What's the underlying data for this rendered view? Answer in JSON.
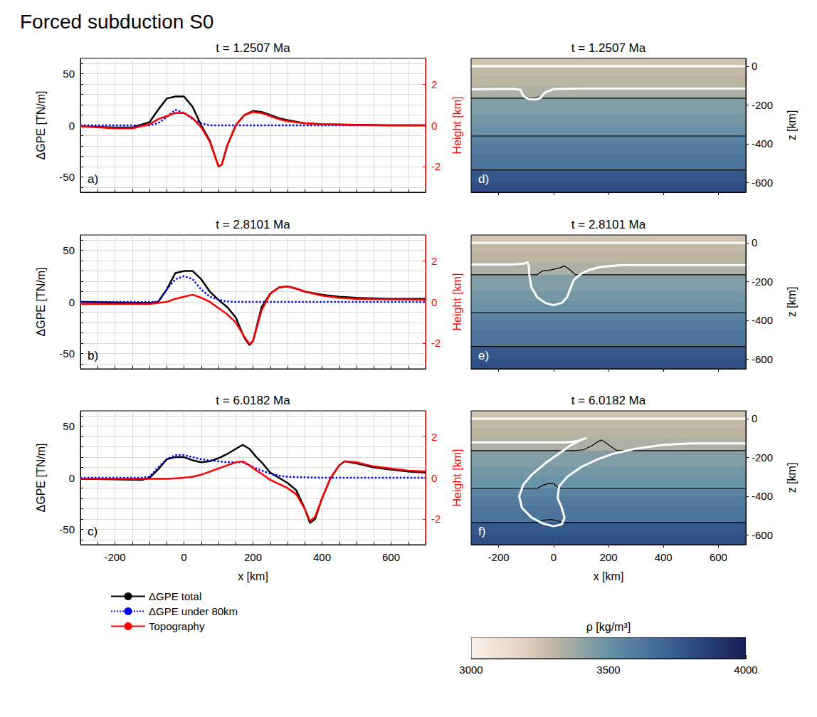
{
  "title": "Forced subduction S0",
  "chart_data": [
    {
      "type": "line",
      "title": "t = 1.2507 Ma",
      "letter": "a)",
      "ylabel": "ΔGPE [TN/m]",
      "y2label": "Height [km]",
      "xlim": [
        -300,
        700
      ],
      "xticks": [
        -200,
        0,
        200,
        400,
        600
      ],
      "ylim": [
        -65,
        65
      ],
      "yticks": [
        -50,
        0,
        50
      ],
      "y2lim": [
        -3.25,
        3.25
      ],
      "y2ticks": [
        -2,
        0,
        2
      ],
      "grid": true,
      "tick_labels": "y",
      "x": [
        -300,
        -200,
        -150,
        -100,
        -75,
        -50,
        -25,
        0,
        25,
        50,
        75,
        100,
        110,
        125,
        150,
        175,
        200,
        225,
        250,
        275,
        300,
        350,
        400,
        500,
        600,
        700
      ],
      "series": [
        {
          "name": "ΔGPE total",
          "color": "#000000",
          "line_style": "solid",
          "values": [
            -1,
            -2,
            -2,
            3,
            15,
            26,
            28,
            28,
            18,
            0,
            -15,
            -40,
            -38,
            -20,
            0,
            10,
            14,
            13,
            10,
            7,
            5,
            2,
            1,
            0.5,
            0,
            0
          ]
        },
        {
          "name": "ΔGPE under 80km",
          "color": "#0000ff",
          "line_style": "dotted",
          "values": [
            0,
            0,
            0,
            0,
            2,
            8,
            15,
            12,
            6,
            2,
            0,
            0,
            0,
            0,
            0,
            0,
            0,
            0,
            0,
            0,
            0,
            0,
            0,
            0,
            0,
            0
          ]
        },
        {
          "name": "Topography",
          "color": "#ff0000",
          "line_style": "solid",
          "axis": "y2",
          "values": [
            -0.05,
            -0.15,
            -0.15,
            0.05,
            0.3,
            0.45,
            0.6,
            0.6,
            0.35,
            -0.1,
            -0.8,
            -2.0,
            -1.9,
            -1.0,
            0,
            0.5,
            0.65,
            0.6,
            0.45,
            0.3,
            0.2,
            0.1,
            0.05,
            0.02,
            0,
            0
          ]
        }
      ]
    },
    {
      "type": "line",
      "title": "t = 2.8101 Ma",
      "letter": "b)",
      "ylabel": "ΔGPE [TN/m]",
      "y2label": "Height [km]",
      "xlim": [
        -300,
        700
      ],
      "xticks": [
        -200,
        0,
        200,
        400,
        600
      ],
      "ylim": [
        -65,
        65
      ],
      "yticks": [
        -50,
        0,
        50
      ],
      "y2lim": [
        -3.25,
        3.25
      ],
      "y2ticks": [
        -2,
        0,
        2
      ],
      "grid": true,
      "tick_labels": "y",
      "x": [
        -300,
        -200,
        -100,
        -75,
        -50,
        -25,
        0,
        25,
        50,
        75,
        100,
        125,
        150,
        175,
        190,
        200,
        225,
        250,
        275,
        300,
        325,
        350,
        400,
        450,
        500,
        600,
        700
      ],
      "series": [
        {
          "name": "ΔGPE total",
          "color": "#000000",
          "line_style": "solid",
          "values": [
            0,
            -0.5,
            -1,
            0,
            12,
            28,
            30,
            30,
            22,
            10,
            2,
            -5,
            -15,
            -35,
            -42,
            -38,
            -5,
            8,
            14,
            15,
            13,
            10,
            7,
            5,
            4,
            3,
            3
          ]
        },
        {
          "name": "ΔGPE under 80km",
          "color": "#0000ff",
          "line_style": "dotted",
          "values": [
            0,
            0,
            0,
            0,
            12,
            22,
            25,
            22,
            12,
            5,
            2,
            0.5,
            0,
            0,
            0,
            0,
            0,
            0,
            0,
            0,
            0,
            0,
            0,
            0,
            0,
            0,
            0
          ]
        },
        {
          "name": "Topography",
          "color": "#ff0000",
          "line_style": "solid",
          "axis": "y2",
          "values": [
            -0.1,
            -0.1,
            -0.1,
            -0.05,
            0,
            0.15,
            0.25,
            0.35,
            0.2,
            0,
            -0.3,
            -0.6,
            -1.0,
            -1.7,
            -2.05,
            -1.9,
            -0.4,
            0.4,
            0.7,
            0.75,
            0.65,
            0.5,
            0.3,
            0.2,
            0.15,
            0.12,
            0.1
          ]
        }
      ]
    },
    {
      "type": "line",
      "title": "t = 6.0182 Ma",
      "letter": "c)",
      "xlabel": "x [km]",
      "ylabel": "ΔGPE [TN/m]",
      "y2label": "Height [km]",
      "xlim": [
        -300,
        700
      ],
      "xticks": [
        -200,
        0,
        200,
        400,
        600
      ],
      "ylim": [
        -65,
        65
      ],
      "yticks": [
        -50,
        0,
        50
      ],
      "y2lim": [
        -3.25,
        3.25
      ],
      "y2ticks": [
        -2,
        0,
        2
      ],
      "grid": true,
      "legend": "bottom",
      "x": [
        -300,
        -200,
        -120,
        -100,
        -75,
        -50,
        -25,
        0,
        25,
        50,
        75,
        100,
        125,
        150,
        170,
        190,
        210,
        225,
        250,
        275,
        300,
        325,
        350,
        365,
        380,
        400,
        425,
        450,
        465,
        500,
        550,
        600,
        650,
        700
      ],
      "series": [
        {
          "name": "ΔGPE total",
          "color": "#000000",
          "line_style": "solid",
          "values": [
            -1,
            -1.5,
            -2,
            0,
            8,
            18,
            20,
            20,
            17,
            15,
            16,
            19,
            23,
            28,
            32,
            28,
            20,
            15,
            5,
            0,
            -5,
            -12,
            -30,
            -44,
            -40,
            -20,
            0,
            12,
            16,
            14,
            10,
            8,
            6,
            5
          ]
        },
        {
          "name": "ΔGPE under 80km",
          "color": "#0000ff",
          "line_style": "dotted",
          "values": [
            0,
            0,
            0,
            1,
            10,
            18,
            22,
            22,
            20,
            18,
            17,
            16,
            15,
            15,
            15,
            12,
            9,
            7,
            4,
            2,
            1,
            0.7,
            0.5,
            0.3,
            0.2,
            0,
            0,
            0,
            0,
            0,
            0,
            0,
            0,
            0
          ]
        },
        {
          "name": "Topography",
          "color": "#ff0000",
          "line_style": "solid",
          "axis": "y2",
          "values": [
            -0.05,
            -0.05,
            -0.05,
            -0.05,
            -0.05,
            -0.05,
            -0.03,
            0,
            0.05,
            0.15,
            0.3,
            0.45,
            0.6,
            0.75,
            0.8,
            0.6,
            0.35,
            0.2,
            -0.1,
            -0.3,
            -0.5,
            -0.8,
            -1.5,
            -2.1,
            -1.9,
            -1.0,
            0,
            0.6,
            0.8,
            0.75,
            0.55,
            0.45,
            0.35,
            0.3
          ]
        }
      ]
    },
    {
      "type": "density",
      "title": "t = 1.2507 Ma",
      "letter": "d)",
      "ylabel": "z [km]",
      "xlim": [
        -300,
        700
      ],
      "xticks": [
        -200,
        0,
        200,
        400,
        600
      ],
      "ylim": [
        -650,
        40
      ],
      "yticks": [
        0,
        -200,
        -400,
        -600
      ],
      "grid": false,
      "tick_labels": "y",
      "z": [
        40,
        0,
        -50,
        -100,
        -165,
        -250,
        -300,
        -360,
        -400,
        -450,
        -535,
        -600,
        -650
      ],
      "rho": [
        3250,
        3290,
        3310,
        3340,
        3440,
        3470,
        3500,
        3570,
        3600,
        3630,
        3760,
        3800
      ],
      "contours": [
        {
          "color": "#ffffff",
          "x": [
            -300,
            700
          ],
          "z": [
            0,
            0
          ]
        },
        {
          "color": "#ffffff",
          "x": [
            -300,
            -200,
            -140,
            -120,
            -115,
            -105,
            -90,
            -70,
            -55,
            -45,
            -40,
            -30,
            0,
            100,
            300,
            700
          ],
          "z": [
            -120,
            -118,
            -118,
            -122,
            -140,
            -160,
            -170,
            -172,
            -168,
            -160,
            -150,
            -135,
            -118,
            -115,
            -115,
            -115
          ]
        },
        {
          "color": "#000000",
          "x": [
            -300,
            -70,
            -55,
            -40,
            700
          ],
          "z": [
            -165,
            -165,
            -158,
            -165,
            -165
          ]
        },
        {
          "color": "#000000",
          "x": [
            -300,
            700
          ],
          "z": [
            -360,
            -360
          ]
        },
        {
          "color": "#000000",
          "x": [
            -300,
            700
          ],
          "z": [
            -535,
            -535
          ]
        }
      ]
    },
    {
      "type": "density",
      "title": "t = 2.8101 Ma",
      "letter": "e)",
      "ylabel": "z [km]",
      "xlim": [
        -300,
        700
      ],
      "xticks": [
        -200,
        0,
        200,
        400,
        600
      ],
      "ylim": [
        -650,
        40
      ],
      "yticks": [
        0,
        -200,
        -400,
        -600
      ],
      "grid": false,
      "tick_labels": "y",
      "z": [
        40,
        0,
        -50,
        -100,
        -165,
        -250,
        -300,
        -360,
        -400,
        -450,
        -535,
        -600,
        -650
      ],
      "rho": [
        3250,
        3290,
        3310,
        3340,
        3440,
        3470,
        3500,
        3570,
        3600,
        3630,
        3760,
        3800
      ],
      "contours": [
        {
          "color": "#ffffff",
          "x": [
            -300,
            700
          ],
          "z": [
            0,
            0
          ]
        },
        {
          "color": "#ffffff",
          "x": [
            -300,
            -150,
            -110,
            -95,
            -90,
            -88,
            -80,
            -60,
            -30,
            0,
            30,
            50,
            60,
            75,
            100,
            130,
            170,
            250,
            400,
            700
          ],
          "z": [
            -112,
            -112,
            -108,
            -100,
            -120,
            -170,
            -230,
            -280,
            -310,
            -322,
            -310,
            -280,
            -240,
            -190,
            -160,
            -140,
            -125,
            -115,
            -115,
            -115
          ]
        },
        {
          "color": "#000000",
          "x": [
            -300,
            -60,
            -40,
            -10,
            20,
            40,
            60,
            80,
            700
          ],
          "z": [
            -165,
            -165,
            -145,
            -140,
            -130,
            -120,
            -140,
            -165,
            -165
          ]
        },
        {
          "color": "#000000",
          "x": [
            -300,
            700
          ],
          "z": [
            -360,
            -360
          ]
        },
        {
          "color": "#000000",
          "x": [
            -300,
            700
          ],
          "z": [
            -535,
            -535
          ]
        }
      ]
    },
    {
      "type": "density",
      "title": "t = 6.0182 Ma",
      "letter": "f)",
      "xlabel": "x [km]",
      "ylabel": "z [km]",
      "xlim": [
        -300,
        700
      ],
      "xticks": [
        -200,
        0,
        200,
        400,
        600
      ],
      "ylim": [
        -650,
        40
      ],
      "yticks": [
        0,
        -200,
        -400,
        -600
      ],
      "grid": false,
      "z": [
        40,
        0,
        -50,
        -100,
        -165,
        -250,
        -300,
        -360,
        -400,
        -450,
        -535,
        -600,
        -650
      ],
      "rho": [
        3250,
        3290,
        3310,
        3340,
        3440,
        3470,
        3500,
        3570,
        3600,
        3630,
        3760,
        3800
      ],
      "contours": [
        {
          "color": "#ffffff",
          "x": [
            -300,
            700
          ],
          "z": [
            0,
            0
          ]
        },
        {
          "color": "#ffffff",
          "x": [
            -300,
            -150,
            50,
            90,
            110,
            120,
            100,
            60,
            20,
            -30,
            -80,
            -110,
            -125,
            -115,
            -80,
            -40,
            0,
            30,
            40,
            30,
            15,
            20,
            50,
            100,
            160,
            220,
            300,
            400,
            500,
            700
          ],
          "z": [
            -122,
            -122,
            -122,
            -115,
            -105,
            -100,
            -110,
            -140,
            -180,
            -230,
            -290,
            -340,
            -400,
            -460,
            -510,
            -540,
            -555,
            -545,
            -510,
            -460,
            -410,
            -350,
            -300,
            -250,
            -210,
            -180,
            -155,
            -135,
            -128,
            -128
          ]
        },
        {
          "color": "#000000",
          "x": [
            -300,
            80,
            110,
            140,
            160,
            175,
            200,
            230,
            700
          ],
          "z": [
            -165,
            -165,
            -160,
            -140,
            -120,
            -110,
            -135,
            -165,
            -165
          ]
        },
        {
          "color": "#000000",
          "x": [
            -300,
            -60,
            -40,
            -20,
            0,
            20,
            700
          ],
          "z": [
            -360,
            -360,
            -345,
            -335,
            -335,
            -360,
            -360
          ]
        },
        {
          "color": "#000000",
          "x": [
            -300,
            -60,
            -40,
            -10,
            10,
            30,
            700
          ],
          "z": [
            -535,
            -535,
            -525,
            -520,
            -525,
            -535,
            -535
          ]
        }
      ],
      "colorbar": {
        "label": "ρ [kg/m³]",
        "range": [
          3000,
          4000
        ],
        "ticks": [
          3000,
          3500,
          4000
        ]
      }
    }
  ]
}
